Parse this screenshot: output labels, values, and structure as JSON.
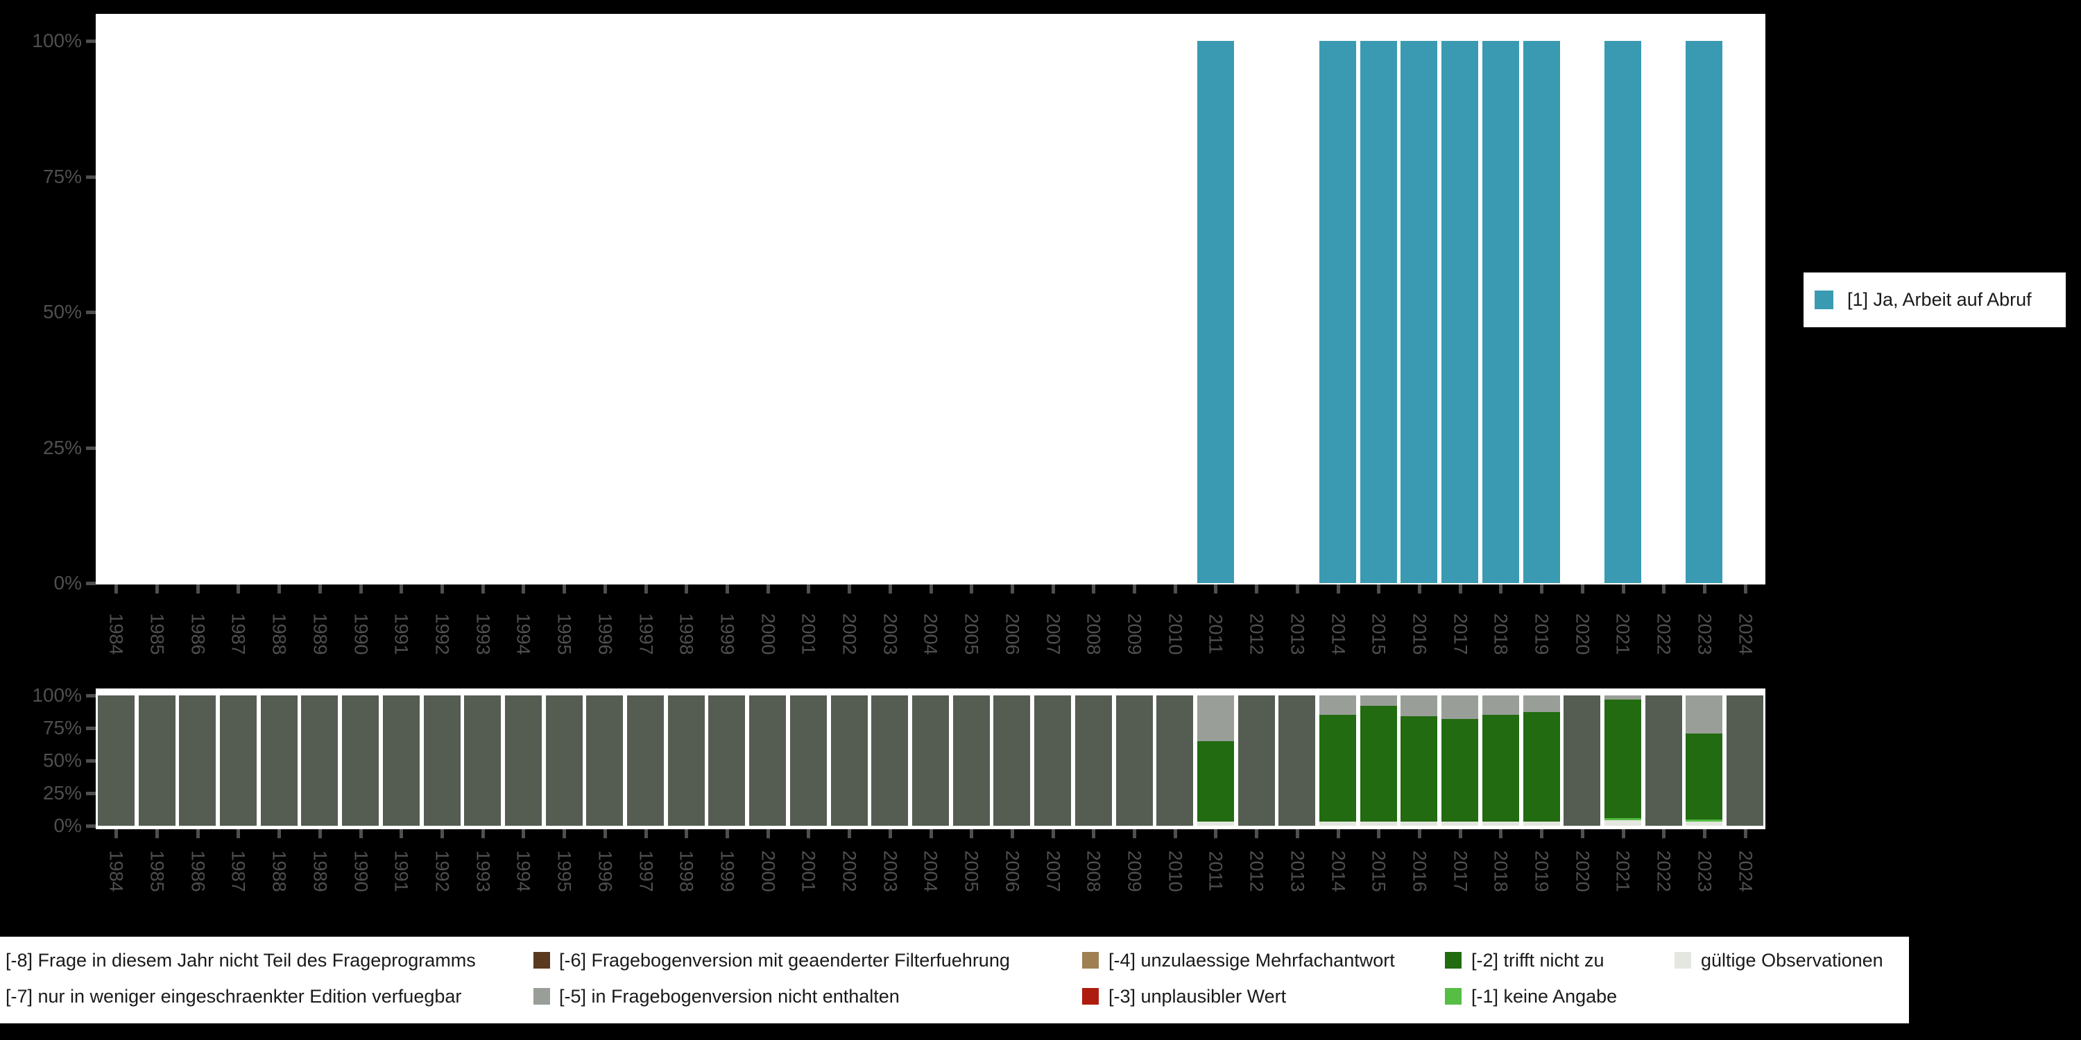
{
  "colors": {
    "background": "#000000",
    "plot_background": "#ffffff",
    "axis_text": "#4f4f4f",
    "legend_text": "#1a1a1a",
    "valid_value_teal": "#3a9ab2"
  },
  "years": [
    1984,
    1985,
    1986,
    1987,
    1988,
    1989,
    1990,
    1991,
    1992,
    1993,
    1994,
    1995,
    1996,
    1997,
    1998,
    1999,
    2000,
    2001,
    2002,
    2003,
    2004,
    2005,
    2006,
    2007,
    2008,
    2009,
    2010,
    2011,
    2012,
    2013,
    2014,
    2015,
    2016,
    2017,
    2018,
    2019,
    2020,
    2021,
    2022,
    2023,
    2024
  ],
  "y_ticks": [
    "0%",
    "25%",
    "50%",
    "75%",
    "100%"
  ],
  "legend_right": {
    "items": [
      {
        "label": "[1] Ja, Arbeit auf Abruf",
        "color": "#3a9ab2"
      }
    ]
  },
  "legend_bottom": {
    "items": [
      {
        "code": "-8",
        "label": "[-8] Frage in diesem Jahr nicht Teil des Frageprogramms",
        "color": null,
        "row": 1,
        "col": 1
      },
      {
        "code": "-7",
        "label": "[-7] nur in weniger eingeschraenkter Edition verfuegbar",
        "color": null,
        "row": 2,
        "col": 1
      },
      {
        "code": "-6",
        "label": "[-6] Fragebogenversion mit geaenderter Filterfuehrung",
        "color": "#5a3a1e",
        "row": 1,
        "col": 2
      },
      {
        "code": "-5",
        "label": "[-5] in Fragebogenversion nicht enthalten",
        "color": "#999f98",
        "row": 2,
        "col": 2
      },
      {
        "code": "-4",
        "label": "[-4] unzulaessige Mehrfachantwort",
        "color": "#a08052",
        "row": 1,
        "col": 3
      },
      {
        "code": "-3",
        "label": "[-3] unplausibler Wert",
        "color": "#ae1c10",
        "row": 2,
        "col": 3
      },
      {
        "code": "-2",
        "label": "[-2] trifft nicht zu",
        "color": "#226b10",
        "row": 1,
        "col": 4
      },
      {
        "code": "-1",
        "label": "[-1] keine Angabe",
        "color": "#56bd45",
        "row": 2,
        "col": 4
      },
      {
        "code": "valid",
        "label": "gültige Observationen",
        "color": "#e3e7df",
        "row": 1,
        "col": 5
      }
    ]
  },
  "chart_data": [
    {
      "type": "bar",
      "title": "",
      "xlabel": "",
      "ylabel": "",
      "ylim": [
        0,
        100
      ],
      "ytick_labels": [
        "0%",
        "25%",
        "50%",
        "75%",
        "100%"
      ],
      "grid": false,
      "legend_position": "right",
      "categories": [
        1984,
        1985,
        1986,
        1987,
        1988,
        1989,
        1990,
        1991,
        1992,
        1993,
        1994,
        1995,
        1996,
        1997,
        1998,
        1999,
        2000,
        2001,
        2002,
        2003,
        2004,
        2005,
        2006,
        2007,
        2008,
        2009,
        2010,
        2011,
        2012,
        2013,
        2014,
        2015,
        2016,
        2017,
        2018,
        2019,
        2020,
        2021,
        2022,
        2023,
        2024
      ],
      "series": [
        {
          "name": "[1] Ja, Arbeit auf Abruf",
          "color": "#3a9ab2",
          "values": [
            null,
            null,
            null,
            null,
            null,
            null,
            null,
            null,
            null,
            null,
            null,
            null,
            null,
            null,
            null,
            null,
            null,
            null,
            null,
            null,
            null,
            null,
            null,
            null,
            null,
            null,
            null,
            100,
            null,
            null,
            100,
            100,
            100,
            100,
            100,
            100,
            null,
            100,
            null,
            100,
            null
          ]
        }
      ]
    },
    {
      "type": "stacked_bar",
      "title": "",
      "xlabel": "",
      "ylabel": "",
      "ylim": [
        0,
        100
      ],
      "ytick_labels": [
        "0%",
        "25%",
        "50%",
        "75%",
        "100%"
      ],
      "grid": false,
      "legend_position": "bottom",
      "categories": [
        1984,
        1985,
        1986,
        1987,
        1988,
        1989,
        1990,
        1991,
        1992,
        1993,
        1994,
        1995,
        1996,
        1997,
        1998,
        1999,
        2000,
        2001,
        2002,
        2003,
        2004,
        2005,
        2006,
        2007,
        2008,
        2009,
        2010,
        2011,
        2012,
        2013,
        2014,
        2015,
        2016,
        2017,
        2018,
        2019,
        2020,
        2021,
        2022,
        2023,
        2024
      ],
      "series": [
        {
          "name": "[-8] Frage in diesem Jahr nicht Teil des Frageprogramms",
          "color": "#555d53",
          "values": [
            100,
            100,
            100,
            100,
            100,
            100,
            100,
            100,
            100,
            100,
            100,
            100,
            100,
            100,
            100,
            100,
            100,
            100,
            100,
            100,
            100,
            100,
            100,
            100,
            100,
            100,
            100,
            0,
            100,
            100,
            0,
            0,
            0,
            0,
            0,
            0,
            100,
            0,
            100,
            0,
            100
          ]
        },
        {
          "name": "[-5] in Fragebogenversion nicht enthalten",
          "color": "#999f98",
          "values": [
            0,
            0,
            0,
            0,
            0,
            0,
            0,
            0,
            0,
            0,
            0,
            0,
            0,
            0,
            0,
            0,
            0,
            0,
            0,
            0,
            0,
            0,
            0,
            0,
            0,
            0,
            0,
            35,
            0,
            0,
            15,
            8,
            16,
            18,
            15,
            13,
            0,
            3,
            0,
            29,
            0
          ]
        },
        {
          "name": "[-2] trifft nicht zu",
          "color": "#226b10",
          "values": [
            0,
            0,
            0,
            0,
            0,
            0,
            0,
            0,
            0,
            0,
            0,
            0,
            0,
            0,
            0,
            0,
            0,
            0,
            0,
            0,
            0,
            0,
            0,
            0,
            0,
            0,
            0,
            62,
            0,
            0,
            82,
            89,
            81,
            79,
            82,
            84,
            0,
            91,
            0,
            66,
            0
          ]
        },
        {
          "name": "[-1] keine Angabe",
          "color": "#56bd45",
          "values": [
            0,
            0,
            0,
            0,
            0,
            0,
            0,
            0,
            0,
            0,
            0,
            0,
            0,
            0,
            0,
            0,
            0,
            0,
            0,
            0,
            0,
            0,
            0,
            0,
            0,
            0,
            0,
            0,
            0,
            0,
            0,
            0,
            0,
            0,
            0,
            0,
            0,
            2,
            0,
            2,
            0
          ]
        },
        {
          "name": "gültige Observationen",
          "color": "#e3e7df",
          "values": [
            0,
            0,
            0,
            0,
            0,
            0,
            0,
            0,
            0,
            0,
            0,
            0,
            0,
            0,
            0,
            0,
            0,
            0,
            0,
            0,
            0,
            0,
            0,
            0,
            0,
            0,
            0,
            3,
            0,
            0,
            3,
            3,
            3,
            3,
            3,
            3,
            0,
            4,
            0,
            3,
            0
          ]
        }
      ]
    }
  ]
}
